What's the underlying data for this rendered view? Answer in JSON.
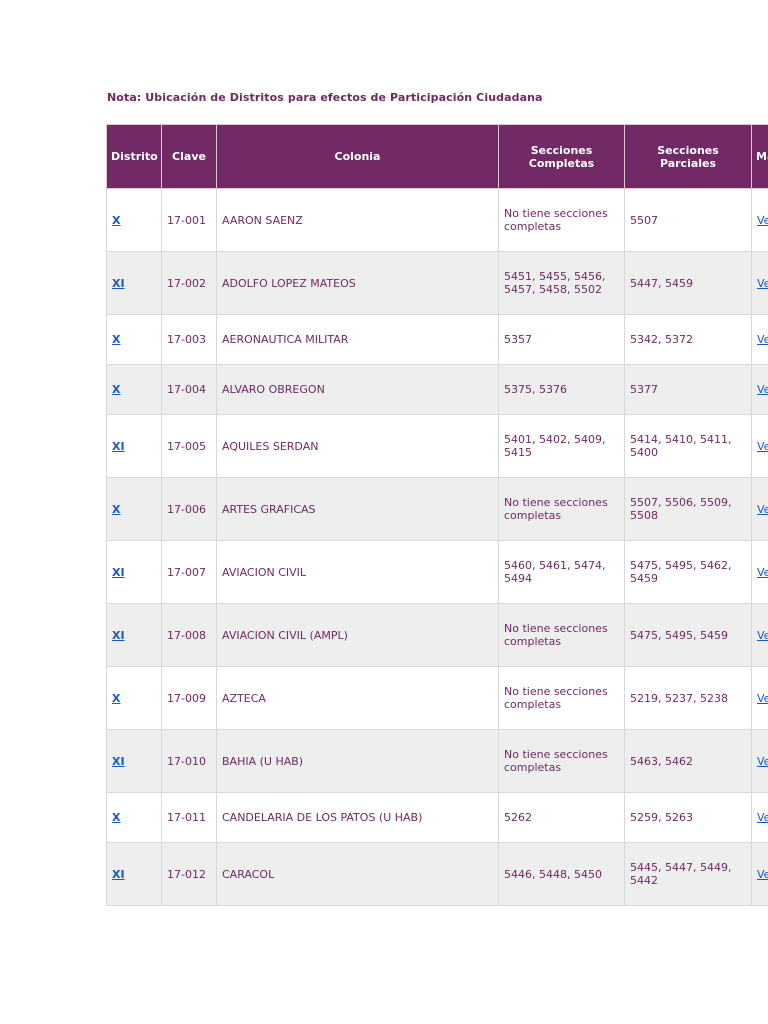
{
  "note": "Nota: Ubicación de Distritos para efectos de Participación Ciudadana",
  "table": {
    "headers": {
      "distrito": "Distrito",
      "clave": "Clave",
      "colonia": "Colonia",
      "completas": "Secciones Completas",
      "parciales": "Secciones Parciales",
      "mapa": "Mapa"
    },
    "rows": [
      {
        "distrito": "X",
        "clave": "17-001",
        "colonia": "AARON SAENZ",
        "completas": "No tiene secciones completas",
        "parciales": "5507",
        "link": "Ver"
      },
      {
        "distrito": "XI",
        "clave": "17-002",
        "colonia": "ADOLFO LOPEZ MATEOS",
        "completas": "5451, 5455, 5456, 5457, 5458, 5502",
        "parciales": "5447, 5459",
        "link": "Ver"
      },
      {
        "distrito": "X",
        "clave": "17-003",
        "colonia": "AERONAUTICA MILITAR",
        "completas": "5357",
        "parciales": "5342, 5372",
        "link": "Ver"
      },
      {
        "distrito": "X",
        "clave": "17-004",
        "colonia": "ALVARO OBREGON",
        "completas": "5375, 5376",
        "parciales": "5377",
        "link": "Ver"
      },
      {
        "distrito": "XI",
        "clave": "17-005",
        "colonia": "AQUILES SERDAN",
        "completas": "5401, 5402, 5409, 5415",
        "parciales": "5414, 5410, 5411, 5400",
        "link": "Ver"
      },
      {
        "distrito": "X",
        "clave": "17-006",
        "colonia": "ARTES GRAFICAS",
        "completas": "No tiene secciones completas",
        "parciales": "5507, 5506, 5509, 5508",
        "link": "Ver"
      },
      {
        "distrito": "XI",
        "clave": "17-007",
        "colonia": "AVIACION CIVIL",
        "completas": "5460, 5461, 5474, 5494",
        "parciales": "5475, 5495, 5462, 5459",
        "link": "Ver"
      },
      {
        "distrito": "XI",
        "clave": "17-008",
        "colonia": "AVIACION CIVIL (AMPL)",
        "completas": "No tiene secciones completas",
        "parciales": "5475, 5495, 5459",
        "link": "Ver"
      },
      {
        "distrito": "X",
        "clave": "17-009",
        "colonia": "AZTECA",
        "completas": "No tiene secciones completas",
        "parciales": "5219, 5237, 5238",
        "link": "Ver"
      },
      {
        "distrito": "XI",
        "clave": "17-010",
        "colonia": "BAHIA (U HAB)",
        "completas": "No tiene secciones completas",
        "parciales": "5463, 5462",
        "link": "Ver"
      },
      {
        "distrito": "X",
        "clave": "17-011",
        "colonia": "CANDELARIA DE LOS PATOS (U HAB)",
        "completas": "5262",
        "parciales": "5259, 5263",
        "link": "Ver"
      },
      {
        "distrito": "XI",
        "clave": "17-012",
        "colonia": "CARACOL",
        "completas": "5446, 5448, 5450",
        "parciales": "5445, 5447, 5449, 5442",
        "link": "Ver"
      }
    ]
  }
}
